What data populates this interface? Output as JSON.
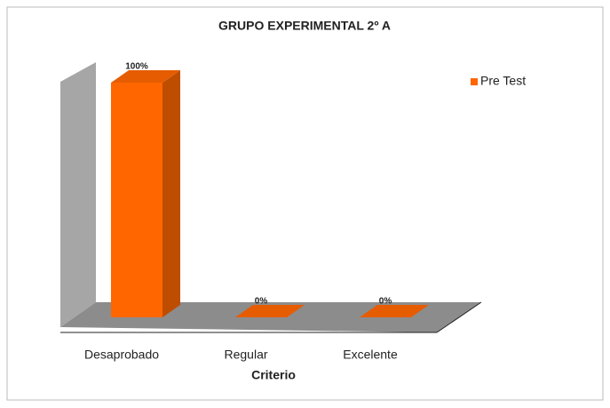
{
  "chart_data": {
    "type": "bar3d",
    "title": "GRUPO EXPERIMENTAL 2º A",
    "x_label": "Criterio",
    "categories": [
      "Desaprobado",
      "Regular",
      "Excelente"
    ],
    "series": [
      {
        "name": "Pre Test",
        "color": "#ff6600",
        "values": [
          100,
          0,
          0
        ],
        "value_labels": [
          "100%",
          "0%",
          "0%"
        ]
      }
    ],
    "ylim": [
      0,
      100
    ],
    "legend": "right"
  }
}
